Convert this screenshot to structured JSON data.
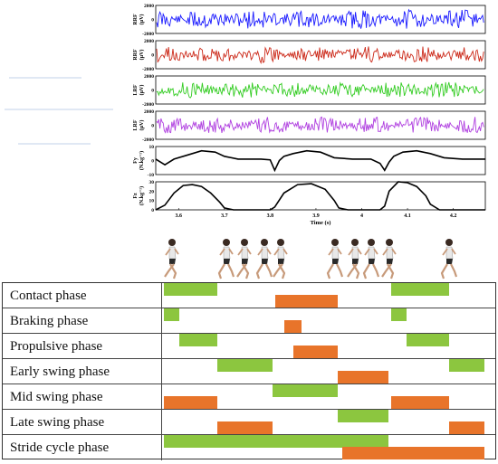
{
  "chart_data": [
    {
      "type": "line",
      "panels": [
        {
          "ylabel": "RRF\n(µV)",
          "yticks": [
            "2000",
            "0",
            "-2000"
          ],
          "ylim": [
            -2000,
            2000
          ],
          "color": "#1a1aff",
          "seed": 11,
          "amp": 0.35
        },
        {
          "ylabel": "RRF\n(µV)",
          "yticks": [
            "2000",
            "0",
            "-2000"
          ],
          "ylim": [
            -2000,
            2000
          ],
          "color": "#cc2a1a",
          "seed": 23,
          "amp": 0.3
        },
        {
          "ylabel": "LRF\n(µV)",
          "yticks": [
            "2000",
            "0",
            "-2000"
          ],
          "ylim": [
            -2000,
            2000
          ],
          "color": "#33cc22",
          "seed": 37,
          "amp": 0.3
        },
        {
          "ylabel": "LRF\n(µV)",
          "yticks": [
            "2000",
            "0",
            "-2000"
          ],
          "ylim": [
            -2000,
            2000
          ],
          "color": "#b040e0",
          "seed": 51,
          "amp": 0.3
        },
        {
          "ylabel": "Fy\n(N.kg⁻¹)",
          "yticks": [
            "10",
            "0",
            "-10"
          ],
          "ylim": [
            -10,
            10
          ],
          "color": "#000000",
          "x": [
            3.55,
            3.57,
            3.59,
            3.62,
            3.65,
            3.68,
            3.7,
            3.73,
            3.78,
            3.8,
            3.81,
            3.82,
            3.83,
            3.85,
            3.88,
            3.91,
            3.94,
            3.98,
            4.02,
            4.04,
            4.05,
            4.06,
            4.07,
            4.09,
            4.12,
            4.15,
            4.18,
            4.22,
            4.27
          ],
          "y": [
            1,
            -3,
            1,
            4,
            7,
            6,
            3,
            1,
            1,
            0.5,
            -7,
            0,
            3,
            5,
            7,
            6,
            2,
            1,
            1,
            -2,
            -7,
            -1,
            3,
            6,
            7,
            5,
            2,
            1,
            1
          ]
        },
        {
          "ylabel": "Fz\n(N.kg⁻¹)",
          "yticks": [
            "30",
            "20",
            "10",
            "0"
          ],
          "ylim": [
            0,
            30
          ],
          "color": "#000000",
          "x": [
            3.55,
            3.57,
            3.59,
            3.61,
            3.63,
            3.65,
            3.67,
            3.69,
            3.7,
            3.72,
            3.8,
            3.81,
            3.83,
            3.86,
            3.89,
            3.92,
            3.94,
            3.95,
            3.97,
            4.04,
            4.05,
            4.06,
            4.08,
            4.1,
            4.12,
            4.14,
            4.15,
            4.17,
            4.27
          ],
          "y": [
            0,
            5,
            18,
            26,
            27,
            25,
            18,
            8,
            2,
            0,
            0,
            3,
            18,
            27,
            28,
            22,
            10,
            2,
            0,
            0,
            4,
            20,
            30,
            29,
            25,
            15,
            6,
            0,
            0
          ]
        }
      ],
      "xlim": [
        3.55,
        4.27
      ],
      "xticks": [
        "3.6",
        "3.7",
        "3.8",
        "3.9",
        "4",
        "4.1",
        "4.2"
      ],
      "xlabel": "Time (s)"
    },
    {
      "type": "table",
      "xlim": [
        3.55,
        4.27
      ],
      "rows": [
        {
          "label": "Contact phase",
          "segments": [
            {
              "color": "green",
              "start": 3.55,
              "end": 3.67,
              "y": 0.3
            },
            {
              "color": "orange",
              "start": 3.8,
              "end": 3.94,
              "y": 0.7
            },
            {
              "color": "green",
              "start": 4.06,
              "end": 4.19,
              "y": 0.3
            }
          ]
        },
        {
          "label": "Braking phase",
          "segments": [
            {
              "color": "green",
              "start": 3.55,
              "end": 3.584,
              "y": 0.3
            },
            {
              "color": "orange",
              "start": 3.82,
              "end": 3.86,
              "y": 0.7
            },
            {
              "color": "green",
              "start": 4.06,
              "end": 4.096,
              "y": 0.3
            }
          ]
        },
        {
          "label": "Propulsive phase",
          "segments": [
            {
              "color": "green",
              "start": 3.584,
              "end": 3.67,
              "y": 0.3
            },
            {
              "color": "orange",
              "start": 3.84,
              "end": 3.94,
              "y": 0.7
            },
            {
              "color": "green",
              "start": 4.096,
              "end": 4.19,
              "y": 0.3
            }
          ]
        },
        {
          "label": "Early swing phase",
          "segments": [
            {
              "color": "green",
              "start": 3.67,
              "end": 3.795,
              "y": 0.3
            },
            {
              "color": "orange",
              "start": 3.94,
              "end": 4.055,
              "y": 0.7
            },
            {
              "color": "green",
              "start": 4.19,
              "end": 4.27,
              "y": 0.3
            }
          ]
        },
        {
          "label": "Mid swing phase",
          "segments": [
            {
              "color": "orange",
              "start": 3.55,
              "end": 3.67,
              "y": 0.7
            },
            {
              "color": "green",
              "start": 3.795,
              "end": 3.94,
              "y": 0.3
            },
            {
              "color": "orange",
              "start": 4.06,
              "end": 4.19,
              "y": 0.7
            }
          ]
        },
        {
          "label": "Late swing phase",
          "segments": [
            {
              "color": "orange",
              "start": 3.67,
              "end": 3.795,
              "y": 0.7
            },
            {
              "color": "green",
              "start": 3.94,
              "end": 4.055,
              "y": 0.3
            },
            {
              "color": "orange",
              "start": 4.19,
              "end": 4.27,
              "y": 0.7
            }
          ]
        },
        {
          "label": "Stride cycle phase",
          "segments": [
            {
              "color": "green",
              "start": 3.55,
              "end": 4.055,
              "y": 0.3
            },
            {
              "color": "orange",
              "start": 3.95,
              "end": 4.27,
              "y": 0.7
            }
          ]
        }
      ]
    }
  ],
  "colors": {
    "green": "#8cc63f",
    "orange": "#e8742a",
    "axis": "#000000"
  },
  "runners": {
    "icon": "runner-icon",
    "count": 12
  }
}
